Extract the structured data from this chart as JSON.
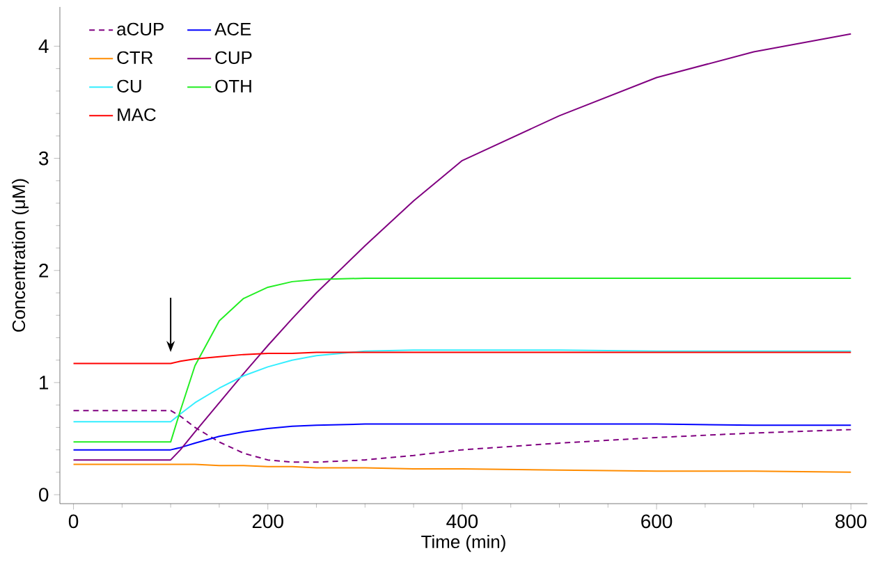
{
  "chart_data": {
    "type": "line",
    "xlabel": "Time (min)",
    "ylabel": "Concentration (μM)",
    "x": [
      0,
      100,
      110,
      125,
      150,
      175,
      200,
      225,
      250,
      300,
      350,
      400,
      500,
      600,
      700,
      800
    ],
    "series": [
      {
        "name": "aCUP",
        "color": "#800080",
        "line_style": "dashed",
        "values": [
          0.75,
          0.75,
          0.7,
          0.6,
          0.47,
          0.37,
          0.31,
          0.29,
          0.29,
          0.31,
          0.35,
          0.4,
          0.46,
          0.51,
          0.55,
          0.58
        ]
      },
      {
        "name": "CTR",
        "color": "#ff8c00",
        "values": [
          0.27,
          0.27,
          0.27,
          0.27,
          0.26,
          0.26,
          0.25,
          0.25,
          0.24,
          0.24,
          0.23,
          0.23,
          0.22,
          0.21,
          0.21,
          0.2
        ]
      },
      {
        "name": "CU",
        "color": "#33eeff",
        "values": [
          0.65,
          0.65,
          0.72,
          0.82,
          0.95,
          1.06,
          1.14,
          1.2,
          1.24,
          1.28,
          1.29,
          1.29,
          1.29,
          1.28,
          1.28,
          1.28
        ]
      },
      {
        "name": "MAC",
        "color": "#ff0000",
        "values": [
          1.17,
          1.17,
          1.19,
          1.21,
          1.23,
          1.25,
          1.26,
          1.26,
          1.27,
          1.27,
          1.27,
          1.27,
          1.27,
          1.27,
          1.27,
          1.27
        ]
      },
      {
        "name": "ACE",
        "color": "#0000ff",
        "values": [
          0.4,
          0.4,
          0.42,
          0.46,
          0.52,
          0.56,
          0.59,
          0.61,
          0.62,
          0.63,
          0.63,
          0.63,
          0.63,
          0.63,
          0.62,
          0.62
        ]
      },
      {
        "name": "CUP",
        "color": "#800080",
        "values": [
          0.31,
          0.31,
          0.4,
          0.56,
          0.82,
          1.08,
          1.33,
          1.57,
          1.8,
          2.22,
          2.62,
          2.98,
          3.38,
          3.72,
          3.95,
          4.11
        ]
      },
      {
        "name": "OTH",
        "color": "#22ee22",
        "values": [
          0.47,
          0.47,
          0.75,
          1.15,
          1.55,
          1.75,
          1.85,
          1.9,
          1.92,
          1.93,
          1.93,
          1.93,
          1.93,
          1.93,
          1.93,
          1.93
        ]
      }
    ],
    "xlim": [
      -14,
      817
    ],
    "ylim": [
      -0.08,
      4.35
    ],
    "xticks": [
      0,
      200,
      400,
      600,
      800
    ],
    "yticks": [
      0,
      1,
      2,
      3,
      4
    ],
    "legend": "top left",
    "marker": "none",
    "line_style": "solid",
    "grid": false
  }
}
